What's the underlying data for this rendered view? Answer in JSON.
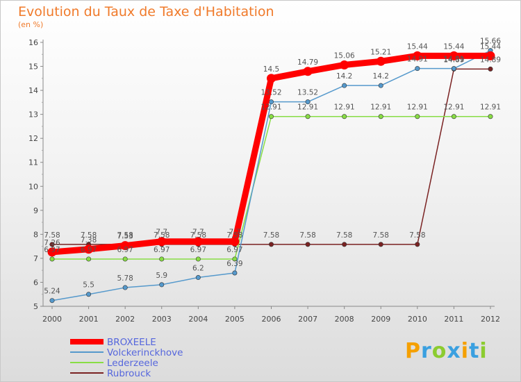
{
  "chart_data": {
    "type": "line",
    "title": "Evolution du Taux de Taxe d'Habitation",
    "subtitle": "(en %)",
    "x": [
      "2000",
      "2001",
      "2002",
      "2003",
      "2004",
      "2005",
      "2006",
      "2007",
      "2008",
      "2009",
      "2010",
      "2011",
      "2012"
    ],
    "ylim": [
      5,
      16
    ],
    "yticks": [
      "5",
      "6",
      "7",
      "8",
      "9",
      "10",
      "11",
      "12",
      "13",
      "14",
      "15",
      "16"
    ],
    "grid": false,
    "legend_position": "bottom-left",
    "series": [
      {
        "name": "BROXEELE",
        "color": "#ff0000",
        "values": [
          7.26,
          7.38,
          7.53,
          7.7,
          7.7,
          7.7,
          14.5,
          14.79,
          15.06,
          15.21,
          15.44,
          15.44,
          15.44
        ],
        "labels": [
          "7.26",
          "7.38",
          "7.53",
          "7.7",
          "7.7",
          "7.7",
          "14.5",
          "14.79",
          "15.06",
          "15.21",
          "15.44",
          "15.44",
          "15.44"
        ]
      },
      {
        "name": "Volckerinckhove",
        "color": "#5599cc",
        "values": [
          5.24,
          5.5,
          5.78,
          5.9,
          6.2,
          6.39,
          13.52,
          13.52,
          14.2,
          14.2,
          14.91,
          14.91,
          15.66
        ],
        "labels": [
          "5.24",
          "5.5",
          "5.78",
          "5.9",
          "6.2",
          "6.39",
          "13.52",
          "13.52",
          "14.2",
          "14.2",
          "14.91",
          "14.91",
          "15.66"
        ]
      },
      {
        "name": "Lederzeele",
        "color": "#88dd44",
        "values": [
          6.97,
          6.97,
          6.97,
          6.97,
          6.97,
          6.97,
          12.91,
          12.91,
          12.91,
          12.91,
          12.91,
          12.91,
          12.91
        ],
        "labels": [
          "6.97",
          "6.97",
          "6.97",
          "6.97",
          "6.97",
          "6.97",
          "12.91",
          "12.91",
          "12.91",
          "12.91",
          "12.91",
          "12.91",
          "12.91"
        ]
      },
      {
        "name": "Rubrouck",
        "color": "#7a2222",
        "values": [
          7.58,
          7.58,
          7.58,
          7.58,
          7.58,
          7.58,
          7.58,
          7.58,
          7.58,
          7.58,
          7.58,
          14.89,
          14.89
        ],
        "labels": [
          "7.58",
          "7.58",
          "7.58",
          "7.58",
          "7.58",
          "7.58",
          "7.58",
          "7.58",
          "7.58",
          "7.58",
          "7.58",
          "14.89",
          "14.89"
        ]
      }
    ]
  },
  "logo": {
    "letters": [
      "P",
      "r",
      "o",
      "x",
      "i",
      "t",
      "i"
    ],
    "colors": [
      "#f5a000",
      "#3aa0e0",
      "#8ccc30",
      "#3aa0e0",
      "#f5a000",
      "#3aa0e0",
      "#8ccc30"
    ]
  }
}
